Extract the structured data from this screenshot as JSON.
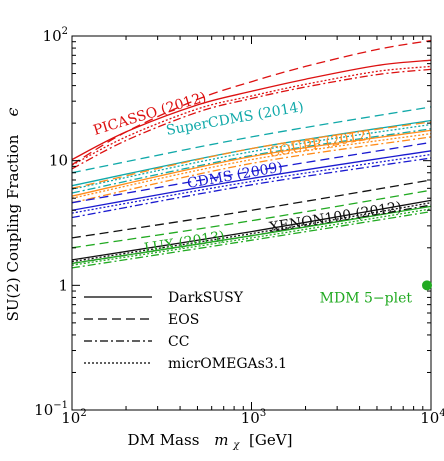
{
  "chart_data": {
    "type": "line",
    "xlabel": "DM Mass",
    "xlabel_symbol": "m",
    "xlabel_subscript": "χ",
    "xlabel_unit": "[GeV]",
    "ylabel": "SU(2) Coupling Fraction",
    "ylabel_symbol": "ϵ",
    "xscale": "log",
    "yscale": "log",
    "xlim": [
      100,
      10000
    ],
    "ylim": [
      0.1,
      100
    ],
    "x_ticks": [
      {
        "base": "10",
        "exp": "2"
      },
      {
        "base": "10",
        "exp": "3"
      },
      {
        "base": "10",
        "exp": "4"
      }
    ],
    "y_ticks": [
      {
        "value": 0.1,
        "base": "10",
        "exp": "−1"
      },
      {
        "value": 1,
        "base": "1",
        "exp": ""
      },
      {
        "value": 10,
        "base": "10",
        "exp": ""
      },
      {
        "value": 100,
        "base": "10",
        "exp": "2"
      }
    ],
    "legend": {
      "placement": "bottom-left",
      "entries": [
        {
          "label": "DarkSUSY",
          "style": "solid"
        },
        {
          "label": "EOS",
          "style": "dashed"
        },
        {
          "label": "CC",
          "style": "dashdot"
        },
        {
          "label": "micrOMEGAs3.1",
          "style": "dotted"
        }
      ]
    },
    "experiments": [
      {
        "label": "PICASSO (2012)",
        "color": "#dd1111",
        "curves": [
          {
            "style": "solid",
            "values": [
              {
                "x": 100,
                "y": 10.2
              },
              {
                "x": 200,
                "y": 17
              },
              {
                "x": 500,
                "y": 28
              },
              {
                "x": 1000,
                "y": 36
              },
              {
                "x": 2000,
                "y": 45
              },
              {
                "x": 5000,
                "y": 58
              },
              {
                "x": 10000,
                "y": 64
              }
            ]
          },
          {
            "style": "dashed",
            "values": [
              {
                "x": 100,
                "y": 9.3
              },
              {
                "x": 200,
                "y": 17
              },
              {
                "x": 500,
                "y": 31
              },
              {
                "x": 1000,
                "y": 43
              },
              {
                "x": 2000,
                "y": 57
              },
              {
                "x": 5000,
                "y": 78
              },
              {
                "x": 10000,
                "y": 92
              }
            ]
          },
          {
            "style": "dashdot",
            "values": [
              {
                "x": 100,
                "y": 8.6
              },
              {
                "x": 200,
                "y": 14.5
              },
              {
                "x": 500,
                "y": 24.5
              },
              {
                "x": 1000,
                "y": 31.5
              },
              {
                "x": 2000,
                "y": 39
              },
              {
                "x": 5000,
                "y": 49
              },
              {
                "x": 10000,
                "y": 54
              }
            ]
          },
          {
            "style": "dotted",
            "values": [
              {
                "x": 100,
                "y": 9.2
              },
              {
                "x": 200,
                "y": 15.5
              },
              {
                "x": 500,
                "y": 26
              },
              {
                "x": 1000,
                "y": 33
              },
              {
                "x": 2000,
                "y": 41
              },
              {
                "x": 5000,
                "y": 52
              },
              {
                "x": 10000,
                "y": 57
              }
            ]
          }
        ]
      },
      {
        "label": "SuperCDMS (2014)",
        "color": "#11a9a9",
        "curves": [
          {
            "style": "solid",
            "values": [
              {
                "x": 100,
                "y": 6.3
              },
              {
                "x": 1000,
                "y": 12.5
              },
              {
                "x": 10000,
                "y": 21
              }
            ]
          },
          {
            "style": "dashed",
            "values": [
              {
                "x": 100,
                "y": 8.0
              },
              {
                "x": 1000,
                "y": 15.5
              },
              {
                "x": 10000,
                "y": 27
              }
            ]
          },
          {
            "style": "dashdot",
            "values": [
              {
                "x": 100,
                "y": 5.5
              },
              {
                "x": 1000,
                "y": 11
              },
              {
                "x": 10000,
                "y": 18
              }
            ]
          },
          {
            "style": "dotted",
            "values": [
              {
                "x": 100,
                "y": 5.9
              },
              {
                "x": 1000,
                "y": 11.8
              },
              {
                "x": 10000,
                "y": 19.5
              }
            ]
          }
        ]
      },
      {
        "label": "COUPP (2012)",
        "color": "#ff8c1a",
        "curves": [
          {
            "style": "solid",
            "values": [
              {
                "x": 100,
                "y": 5.2
              },
              {
                "x": 1000,
                "y": 10.8
              },
              {
                "x": 10000,
                "y": 17.5
              }
            ]
          },
          {
            "style": "dashed",
            "values": [
              {
                "x": 100,
                "y": 6.0
              },
              {
                "x": 1000,
                "y": 12.5
              },
              {
                "x": 10000,
                "y": 20.5
              }
            ]
          },
          {
            "style": "dashdot",
            "values": [
              {
                "x": 100,
                "y": 4.6
              },
              {
                "x": 1000,
                "y": 9.5
              },
              {
                "x": 10000,
                "y": 15.5
              }
            ]
          },
          {
            "style": "dotted",
            "values": [
              {
                "x": 100,
                "y": 5.0
              },
              {
                "x": 1000,
                "y": 10.2
              },
              {
                "x": 10000,
                "y": 16.5
              }
            ]
          }
        ]
      },
      {
        "label": "CDMS (2009)",
        "color": "#1a1ad0",
        "curves": [
          {
            "style": "solid",
            "values": [
              {
                "x": 100,
                "y": 4.0
              },
              {
                "x": 1000,
                "y": 7.2
              },
              {
                "x": 10000,
                "y": 12
              }
            ]
          },
          {
            "style": "dashed",
            "values": [
              {
                "x": 100,
                "y": 4.6
              },
              {
                "x": 1000,
                "y": 8.2
              },
              {
                "x": 10000,
                "y": 14
              }
            ]
          },
          {
            "style": "dashdot",
            "values": [
              {
                "x": 100,
                "y": 3.5
              },
              {
                "x": 1000,
                "y": 6.4
              },
              {
                "x": 10000,
                "y": 10.5
              }
            ]
          },
          {
            "style": "dotted",
            "values": [
              {
                "x": 100,
                "y": 3.8
              },
              {
                "x": 1000,
                "y": 6.8
              },
              {
                "x": 10000,
                "y": 11.2
              }
            ]
          }
        ]
      },
      {
        "label": "XENON100 (2012)",
        "color": "#111111",
        "curves": [
          {
            "style": "solid",
            "values": [
              {
                "x": 100,
                "y": 1.6
              },
              {
                "x": 1000,
                "y": 2.7
              },
              {
                "x": 10000,
                "y": 4.8
              }
            ]
          },
          {
            "style": "dashed",
            "values": [
              {
                "x": 100,
                "y": 2.4
              },
              {
                "x": 1000,
                "y": 4.0
              },
              {
                "x": 10000,
                "y": 7.0
              }
            ]
          },
          {
            "style": "dashdot",
            "values": [
              {
                "x": 100,
                "y": 1.5
              },
              {
                "x": 1000,
                "y": 2.5
              },
              {
                "x": 10000,
                "y": 4.4
              }
            ]
          },
          {
            "style": "dotted",
            "values": [
              {
                "x": 100,
                "y": 1.55
              },
              {
                "x": 1000,
                "y": 2.6
              },
              {
                "x": 10000,
                "y": 4.6
              }
            ]
          }
        ]
      },
      {
        "label": "LUX (2013)",
        "color": "#22aa22",
        "curves": [
          {
            "style": "solid",
            "values": [
              {
                "x": 100,
                "y": 1.5
              },
              {
                "x": 1000,
                "y": 2.5
              },
              {
                "x": 10000,
                "y": 4.3
              }
            ]
          },
          {
            "style": "dashed",
            "values": [
              {
                "x": 100,
                "y": 2.0
              },
              {
                "x": 1000,
                "y": 3.3
              },
              {
                "x": 10000,
                "y": 5.8
              }
            ]
          },
          {
            "style": "dashdot",
            "values": [
              {
                "x": 100,
                "y": 1.38
              },
              {
                "x": 1000,
                "y": 2.3
              },
              {
                "x": 10000,
                "y": 3.9
              }
            ]
          },
          {
            "style": "dotted",
            "values": [
              {
                "x": 100,
                "y": 1.45
              },
              {
                "x": 1000,
                "y": 2.4
              },
              {
                "x": 10000,
                "y": 4.1
              }
            ]
          }
        ]
      }
    ],
    "point": {
      "label": "MDM 5−plet",
      "x": 9500,
      "y": 1.0,
      "color": "#22aa22"
    }
  }
}
